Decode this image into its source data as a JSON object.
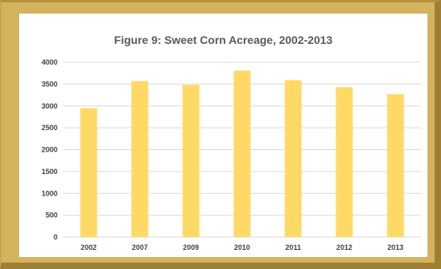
{
  "chart_data": {
    "type": "bar",
    "title": "Figure 9:  Sweet Corn Acreage, 2002-2013",
    "xlabel": "",
    "ylabel": "",
    "categories": [
      "2002",
      "2007",
      "2009",
      "2010",
      "2011",
      "2012",
      "2013"
    ],
    "series": [
      {
        "values": [
          2950,
          3570,
          3480,
          3810,
          3590,
          3430,
          3270
        ],
        "color": "#ffd966"
      }
    ],
    "ylim": [
      0,
      4000
    ],
    "yticks": [
      0,
      500,
      1000,
      1500,
      2000,
      2500,
      3000,
      3500,
      4000
    ],
    "grid": true,
    "legend": "none"
  },
  "colors": {
    "bar": "#ffd966",
    "frame": "#d4b25e",
    "gridline": "#d9d9d9",
    "title": "#595959"
  }
}
